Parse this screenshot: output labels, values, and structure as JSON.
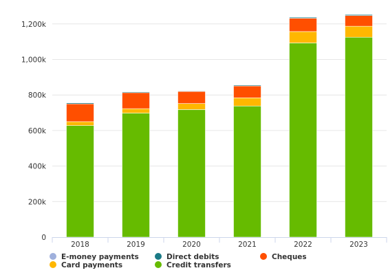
{
  "chart_data": {
    "type": "bar",
    "stacked": true,
    "categories": [
      "2018",
      "2019",
      "2020",
      "2021",
      "2022",
      "2023"
    ],
    "ylim": [
      0,
      1250000
    ],
    "y_ticks": [
      0,
      200000,
      400000,
      600000,
      800000,
      1000000,
      1200000
    ],
    "y_tick_labels": [
      "0",
      "200k",
      "400k",
      "600k",
      "800k",
      "1,000k",
      "1,200k"
    ],
    "grid": true,
    "legend_position": "bottom",
    "series": [
      {
        "name": "Credit transfers",
        "color": "#66bb00",
        "values": [
          628000,
          698000,
          718000,
          738000,
          1093000,
          1125000
        ]
      },
      {
        "name": "Card payments",
        "color": "#ffb700",
        "values": [
          22000,
          25000,
          34000,
          46000,
          64000,
          62000
        ]
      },
      {
        "name": "Cheques",
        "color": "#ff4f00",
        "values": [
          100000,
          90000,
          68000,
          67000,
          75000,
          60000
        ]
      },
      {
        "name": "Direct debits",
        "color": "#1a7a86",
        "values": [
          6000,
          5000,
          3000,
          5000,
          6000,
          6000
        ]
      },
      {
        "name": "E-money payments",
        "color": "#9fb0dc",
        "values": [
          1000,
          1000,
          1000,
          1000,
          1000,
          1000
        ]
      }
    ],
    "legend": [
      {
        "name": "E-money payments",
        "color": "#9fb0dc"
      },
      {
        "name": "Direct debits",
        "color": "#1a7a86"
      },
      {
        "name": "Cheques",
        "color": "#ff4f00"
      },
      {
        "name": "Card payments",
        "color": "#ffb700"
      },
      {
        "name": "Credit transfers",
        "color": "#66bb00"
      }
    ]
  }
}
